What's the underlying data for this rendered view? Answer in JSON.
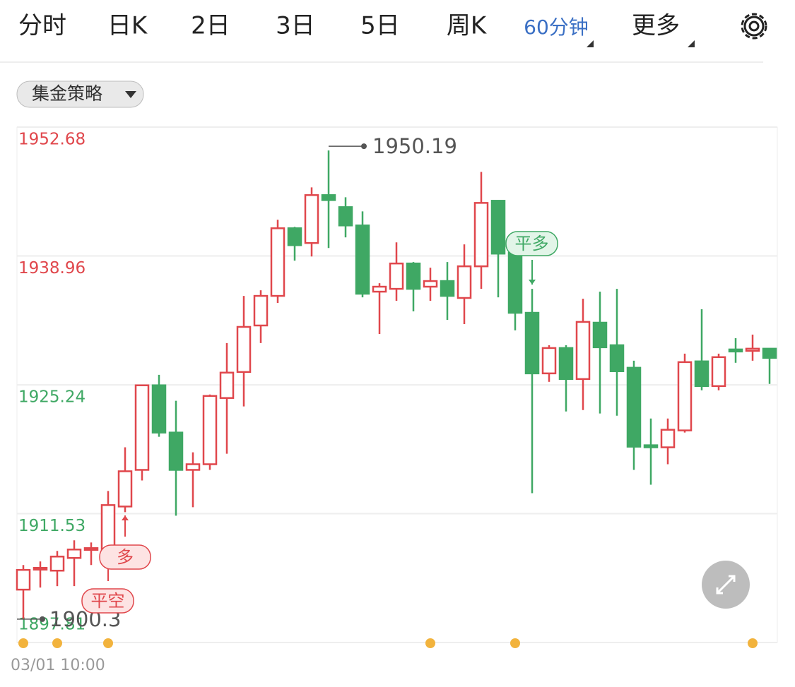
{
  "tabs": [
    "分时",
    "日K",
    "2日",
    "3日",
    "5日",
    "周K",
    "60分钟",
    "更多"
  ],
  "active_tab": "60分钟",
  "strategy_dropdown": "集金策略",
  "chart_data": {
    "type": "candlestick",
    "categories": [
      "03/01 10:00",
      null,
      null,
      null,
      null,
      null,
      null,
      null,
      null,
      null,
      null,
      null,
      null,
      null,
      null,
      null,
      null,
      null,
      null,
      null,
      null,
      null,
      null,
      null,
      null,
      null,
      null,
      null,
      null,
      null,
      null,
      null,
      null,
      null,
      null,
      null,
      null,
      null,
      null,
      null,
      null,
      null,
      null,
      null,
      null
    ],
    "open": [
      1903.44,
      1905.61,
      1905.46,
      1906.81,
      1907.71,
      1907.56,
      1912.29,
      1916.19,
      1925.19,
      1920.16,
      1916.19,
      1916.79,
      1923.84,
      1926.61,
      1931.56,
      1934.71,
      1941.91,
      1940.34,
      1945.44,
      1944.16,
      1942.21,
      1935.16,
      1935.46,
      1938.16,
      1935.69,
      1936.29,
      1934.49,
      1937.86,
      1944.84,
      1939.29,
      1932.91,
      1926.46,
      1929.16,
      1925.86,
      1931.86,
      1929.46,
      1927.06,
      1918.81,
      1918.59,
      1920.39,
      1927.74,
      1925.11,
      1929.01,
      1928.86,
      1929.09
    ],
    "high": [
      1906.06,
      1906.44,
      1907.56,
      1908.69,
      1908.46,
      1913.94,
      1918.59,
      1925.19,
      1926.31,
      1923.54,
      1918.06,
      1924.21,
      1929.69,
      1934.71,
      1935.31,
      1942.81,
      1942.06,
      1946.26,
      1950.19,
      1945.21,
      1943.71,
      1936.06,
      1940.41,
      1938.31,
      1937.71,
      1938.31,
      1940.19,
      1947.91,
      1944.84,
      1940.19,
      1935.46,
      1929.46,
      1929.46,
      1934.41,
      1935.16,
      1935.46,
      1927.81,
      1921.66,
      1921.66,
      1928.56,
      1933.29,
      1928.56,
      1930.21,
      1930.59,
      1929.09
    ],
    "low": [
      1900.3,
      1903.66,
      1903.81,
      1903.81,
      1906.06,
      1906.81,
      1911.69,
      1915.06,
      1919.71,
      1911.31,
      1912.21,
      1916.19,
      1917.91,
      1922.94,
      1929.69,
      1933.96,
      1938.46,
      1938.91,
      1939.81,
      1940.94,
      1934.56,
      1930.66,
      1934.19,
      1933.06,
      1934.19,
      1932.16,
      1931.71,
      1935.46,
      1934.56,
      1931.04,
      1913.71,
      1925.56,
      1922.41,
      1922.56,
      1922.19,
      1921.96,
      1916.19,
      1914.61,
      1916.79,
      1920.16,
      1924.66,
      1924.66,
      1927.59,
      1927.81,
      1925.34
    ],
    "close": [
      1905.54,
      1905.76,
      1906.96,
      1907.71,
      1907.86,
      1912.44,
      1916.04,
      1925.19,
      1920.16,
      1916.19,
      1916.79,
      1924.06,
      1926.54,
      1931.41,
      1934.71,
      1941.91,
      1940.11,
      1945.44,
      1944.91,
      1942.21,
      1934.94,
      1935.69,
      1938.16,
      1935.46,
      1936.29,
      1934.71,
      1937.86,
      1944.61,
      1939.21,
      1932.91,
      1926.46,
      1929.16,
      1925.86,
      1931.94,
      1929.24,
      1926.69,
      1918.66,
      1918.59,
      1920.46,
      1927.66,
      1925.11,
      1928.19,
      1928.79,
      1929.09,
      1928.11
    ],
    "up_color": "#e0474c",
    "down_color": "#3fa864",
    "ylim": [
      1897.81,
      1952.68
    ],
    "yticks": [
      1897.81,
      1911.53,
      1925.24,
      1938.96,
      1952.68
    ],
    "ytick_colors": [
      "#3fa864",
      "#3fa864",
      "#3fa864",
      "#e0474c",
      "#e0474c"
    ],
    "grid": true,
    "annotations": [
      "平空",
      "多",
      "平多"
    ]
  }
}
